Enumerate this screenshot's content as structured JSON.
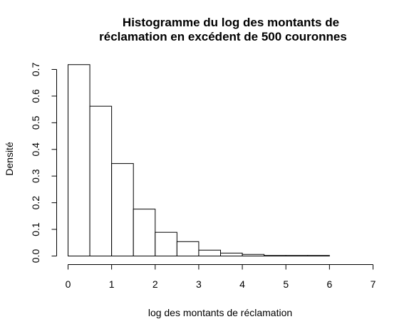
{
  "chart_data": {
    "type": "bar",
    "title_line1": "Histogramme du log des montants de",
    "title_line2": "réclamation en excédent de 500 couronnes",
    "xlabel": "log des montants de réclamation",
    "ylabel": "Densité",
    "xlim": [
      0,
      7
    ],
    "ylim": [
      0,
      0.7
    ],
    "x_ticks": [
      "0",
      "1",
      "2",
      "3",
      "4",
      "5",
      "6",
      "7"
    ],
    "y_ticks": [
      "0.0",
      "0.1",
      "0.2",
      "0.3",
      "0.4",
      "0.5",
      "0.6",
      "0.7"
    ],
    "bin_width": 0.5,
    "bins": [
      {
        "x0": 0.0,
        "x1": 0.5,
        "density": 0.718
      },
      {
        "x0": 0.5,
        "x1": 1.0,
        "density": 0.562
      },
      {
        "x0": 1.0,
        "x1": 1.5,
        "density": 0.347
      },
      {
        "x0": 1.5,
        "x1": 2.0,
        "density": 0.176
      },
      {
        "x0": 2.0,
        "x1": 2.5,
        "density": 0.089
      },
      {
        "x0": 2.5,
        "x1": 3.0,
        "density": 0.054
      },
      {
        "x0": 3.0,
        "x1": 3.5,
        "density": 0.022
      },
      {
        "x0": 3.5,
        "x1": 4.0,
        "density": 0.011
      },
      {
        "x0": 4.0,
        "x1": 4.5,
        "density": 0.006
      },
      {
        "x0": 4.5,
        "x1": 5.0,
        "density": 0.002
      },
      {
        "x0": 5.0,
        "x1": 5.5,
        "density": 0.002
      },
      {
        "x0": 5.5,
        "x1": 6.0,
        "density": 0.002
      },
      {
        "x0": 6.0,
        "x1": 6.5,
        "density": 0.0
      },
      {
        "x0": 6.5,
        "x1": 7.0,
        "density": 0.0
      }
    ]
  }
}
